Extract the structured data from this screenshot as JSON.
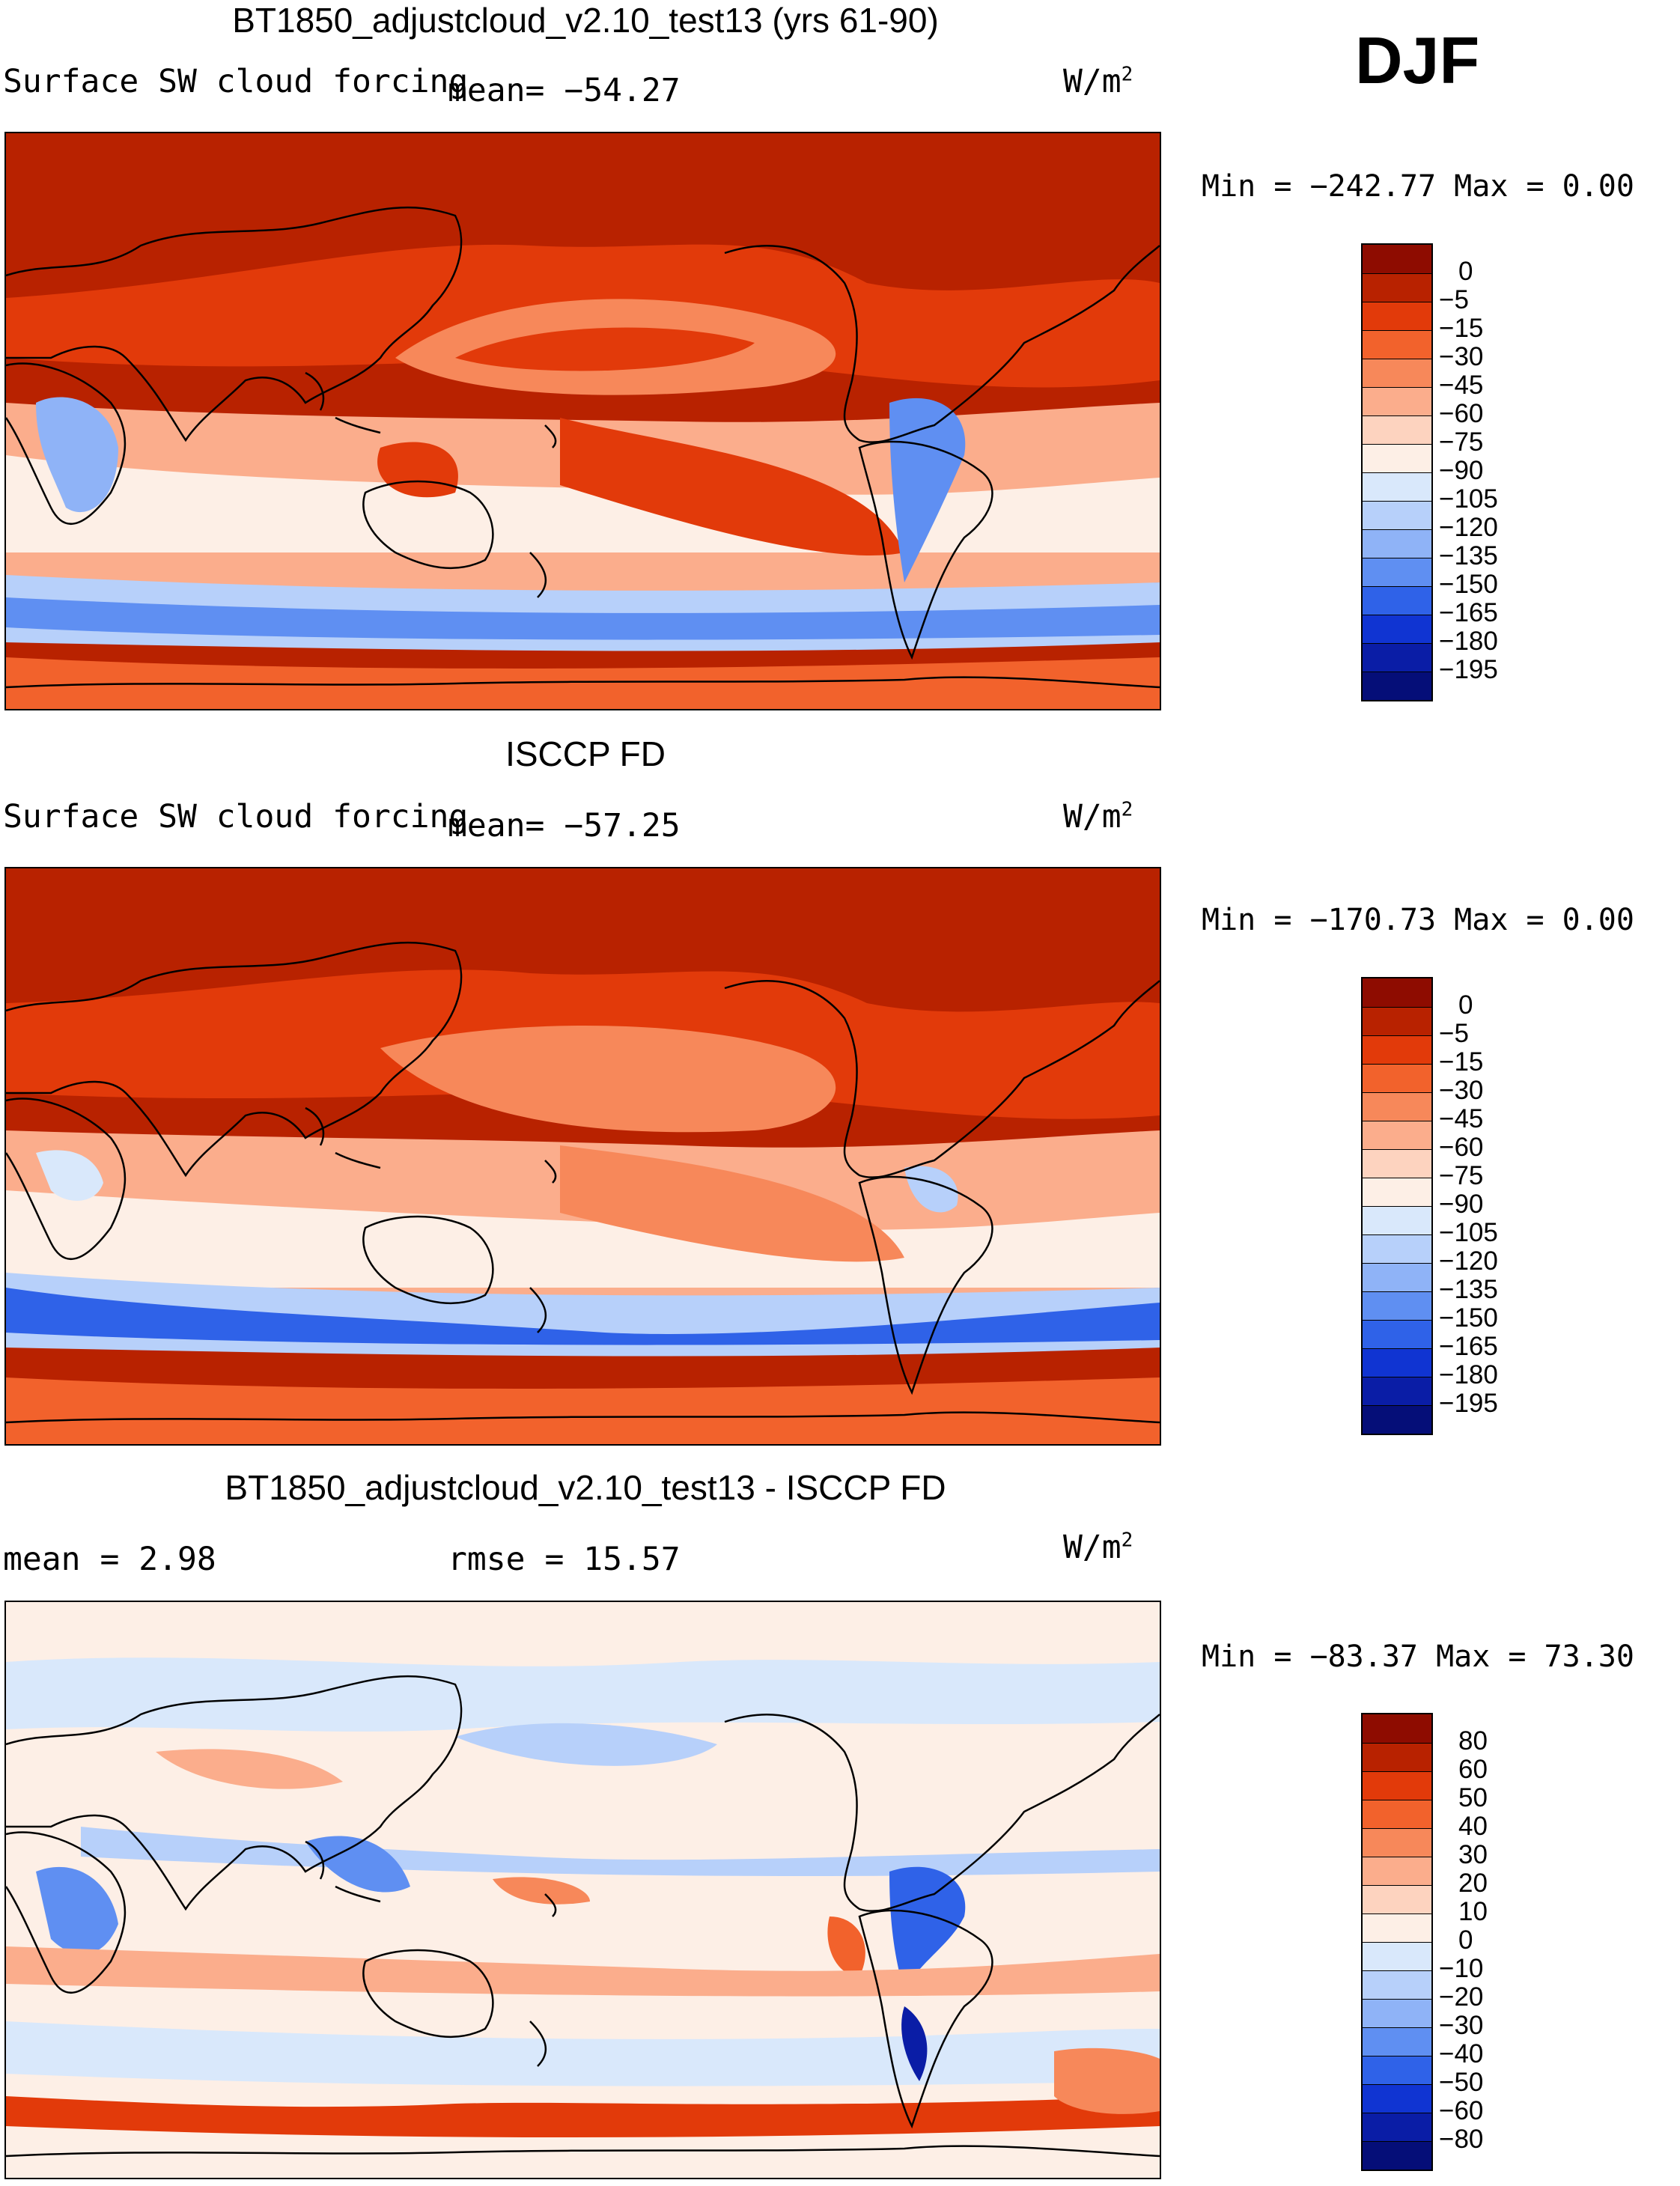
{
  "season": "DJF",
  "panels": [
    {
      "id": "model",
      "title": "BT1850_adjustcloud_v2.10_test13 (yrs 61-90)",
      "left_label": "Surface SW cloud forcing",
      "stat1": "mean=  −54.27",
      "stat2": "",
      "units_base": "W/m",
      "units_sup": "2",
      "minmax": "Min = −242.77 Max =    0.00",
      "bg_color": "#b82200",
      "colorbar": {
        "labels": [
          "0",
          "−5",
          "−15",
          "−30",
          "−45",
          "−60",
          "−75",
          "−90",
          "−105",
          "−120",
          "−135",
          "−150",
          "−165",
          "−180",
          "−195"
        ],
        "colors": [
          "#8e0c00",
          "#b82200",
          "#e23a0a",
          "#f2622c",
          "#f7885a",
          "#fbad8c",
          "#fdd3bf",
          "#fdefe6",
          "#d9e8fb",
          "#b7d0fa",
          "#8fb3f7",
          "#5f8ff2",
          "#2f62e8",
          "#1034d2",
          "#0a1da6",
          "#050e78"
        ]
      },
      "chart_data": {
        "type": "heatmap",
        "variable": "Surface SW cloud forcing",
        "units": "W/m2",
        "mean": -54.27,
        "min": -242.77,
        "max": 0.0,
        "levels": [
          0,
          -5,
          -15,
          -30,
          -45,
          -60,
          -75,
          -90,
          -105,
          -120,
          -135,
          -150,
          -165,
          -180,
          -195
        ]
      }
    },
    {
      "id": "obs",
      "title": "ISCCP FD",
      "left_label": "Surface SW cloud forcing",
      "stat1": "mean=  −57.25",
      "stat2": "",
      "units_base": "W/m",
      "units_sup": "2",
      "minmax": "Min = −170.73 Max =    0.00",
      "bg_color": "#b82200",
      "colorbar": {
        "labels": [
          "0",
          "−5",
          "−15",
          "−30",
          "−45",
          "−60",
          "−75",
          "−90",
          "−105",
          "−120",
          "−135",
          "−150",
          "−165",
          "−180",
          "−195"
        ],
        "colors": [
          "#8e0c00",
          "#b82200",
          "#e23a0a",
          "#f2622c",
          "#f7885a",
          "#fbad8c",
          "#fdd3bf",
          "#fdefe6",
          "#d9e8fb",
          "#b7d0fa",
          "#8fb3f7",
          "#5f8ff2",
          "#2f62e8",
          "#1034d2",
          "#0a1da6",
          "#050e78"
        ]
      },
      "chart_data": {
        "type": "heatmap",
        "variable": "Surface SW cloud forcing",
        "units": "W/m2",
        "mean": -57.25,
        "min": -170.73,
        "max": 0.0,
        "levels": [
          0,
          -5,
          -15,
          -30,
          -45,
          -60,
          -75,
          -90,
          -105,
          -120,
          -135,
          -150,
          -165,
          -180,
          -195
        ]
      }
    },
    {
      "id": "diff",
      "title": "BT1850_adjustcloud_v2.10_test13 - ISCCP FD",
      "left_label": "mean =    2.98",
      "stat1": "",
      "stat2": "rmse =   15.57",
      "units_base": "W/m",
      "units_sup": "2",
      "minmax": "Min = −83.37 Max =  73.30",
      "bg_color": "#fdefe6",
      "colorbar": {
        "labels": [
          "80",
          "60",
          "50",
          "40",
          "30",
          "20",
          "10",
          "0",
          "−10",
          "−20",
          "−30",
          "−40",
          "−50",
          "−60",
          "−80"
        ],
        "colors": [
          "#8e0c00",
          "#b82200",
          "#e23a0a",
          "#f2622c",
          "#f7885a",
          "#fbad8c",
          "#fdd3bf",
          "#fdefe6",
          "#d9e8fb",
          "#b7d0fa",
          "#8fb3f7",
          "#5f8ff2",
          "#2f62e8",
          "#1034d2",
          "#0a1da6",
          "#050e78"
        ]
      },
      "chart_data": {
        "type": "heatmap",
        "variable": "Surface SW cloud forcing difference",
        "units": "W/m2",
        "mean": 2.98,
        "rmse": 15.57,
        "min": -83.37,
        "max": 73.3,
        "levels": [
          80,
          60,
          50,
          40,
          30,
          20,
          10,
          0,
          -10,
          -20,
          -30,
          -40,
          -50,
          -60,
          -80
        ]
      }
    }
  ]
}
